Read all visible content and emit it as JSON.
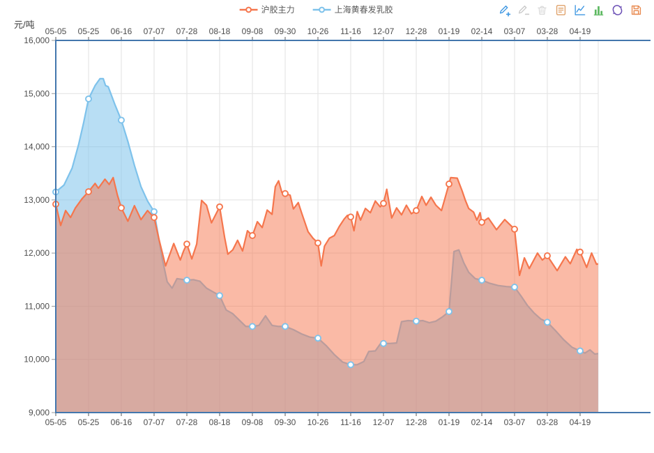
{
  "legend": {
    "items": [
      {
        "label": "沪胶主力",
        "color": "#F5764D"
      },
      {
        "label": "上海黄春发乳胶",
        "color": "#7EC2EB"
      }
    ]
  },
  "toolbar": {
    "icons": [
      {
        "name": "marker-add-icon",
        "color": "#3E97E2"
      },
      {
        "name": "marker-remove-icon",
        "color": "#C9C9C9"
      },
      {
        "name": "marker-clear-icon",
        "color": "#DBDBDB"
      },
      {
        "name": "data-view-icon",
        "color": "#DFA169"
      },
      {
        "name": "line-chart-icon",
        "color": "#3E97E2"
      },
      {
        "name": "bar-chart-icon",
        "color": "#5CB860"
      },
      {
        "name": "restore-icon",
        "color": "#6B4FB5"
      },
      {
        "name": "save-image-icon",
        "color": "#E8884D"
      }
    ]
  },
  "chart_data": {
    "type": "area",
    "unit_label": "元/吨",
    "ylim": [
      9000,
      16000
    ],
    "y_step": 1000,
    "y_tick_labels": [
      "9,000",
      "10,000",
      "11,000",
      "12,000",
      "13,000",
      "14,000",
      "15,000",
      "16,000"
    ],
    "x_tick_labels": [
      "05-05",
      "05-25",
      "06-16",
      "07-07",
      "07-28",
      "08-18",
      "09-08",
      "09-30",
      "10-26",
      "11-16",
      "12-07",
      "12-28",
      "01-19",
      "02-14",
      "03-07",
      "03-28",
      "04-19"
    ],
    "grid": true,
    "legend_position": "top-center",
    "axis_color": "#4377AD",
    "grid_color": "#E2E2E2",
    "text_color": "#4D4D4D",
    "series": [
      {
        "name": "上海黄春发乳胶",
        "color": "#7EC2EB",
        "fill_opacity": 0.55,
        "tick_values": [
          13150,
          14900,
          14500,
          12780,
          11490,
          11200,
          10620,
          10620,
          10400,
          9900,
          10300,
          10720,
          10900,
          11490,
          11360,
          10700,
          10160
        ],
        "points": [
          [
            0,
            13150
          ],
          [
            0.25,
            13280
          ],
          [
            0.5,
            13600
          ],
          [
            0.7,
            14050
          ],
          [
            0.85,
            14450
          ],
          [
            1,
            14900
          ],
          [
            1.2,
            15150
          ],
          [
            1.35,
            15280
          ],
          [
            1.45,
            15280
          ],
          [
            1.52,
            15150
          ],
          [
            1.6,
            15130
          ],
          [
            1.8,
            14800
          ],
          [
            2,
            14500
          ],
          [
            2.2,
            14100
          ],
          [
            2.4,
            13650
          ],
          [
            2.6,
            13250
          ],
          [
            2.8,
            12980
          ],
          [
            3,
            12780
          ],
          [
            3.1,
            12430
          ],
          [
            3.25,
            11890
          ],
          [
            3.4,
            11460
          ],
          [
            3.55,
            11340
          ],
          [
            3.7,
            11520
          ],
          [
            4,
            11490
          ],
          [
            4.2,
            11500
          ],
          [
            4.4,
            11470
          ],
          [
            4.6,
            11340
          ],
          [
            4.8,
            11270
          ],
          [
            5,
            11200
          ],
          [
            5.2,
            10930
          ],
          [
            5.4,
            10860
          ],
          [
            5.6,
            10740
          ],
          [
            5.8,
            10620
          ],
          [
            6,
            10620
          ],
          [
            6.2,
            10640
          ],
          [
            6.4,
            10820
          ],
          [
            6.6,
            10640
          ],
          [
            6.8,
            10620
          ],
          [
            7,
            10620
          ],
          [
            7.25,
            10560
          ],
          [
            7.5,
            10480
          ],
          [
            7.75,
            10420
          ],
          [
            8,
            10400
          ],
          [
            8.25,
            10260
          ],
          [
            8.5,
            10090
          ],
          [
            8.75,
            9950
          ],
          [
            9,
            9900
          ],
          [
            9.2,
            9900
          ],
          [
            9.4,
            9960
          ],
          [
            9.55,
            10150
          ],
          [
            9.75,
            10160
          ],
          [
            9.9,
            10290
          ],
          [
            10,
            10300
          ],
          [
            10.2,
            10300
          ],
          [
            10.4,
            10310
          ],
          [
            10.55,
            10710
          ],
          [
            10.75,
            10730
          ],
          [
            11,
            10720
          ],
          [
            11.2,
            10730
          ],
          [
            11.4,
            10690
          ],
          [
            11.6,
            10720
          ],
          [
            11.8,
            10800
          ],
          [
            12,
            10900
          ],
          [
            12.08,
            11500
          ],
          [
            12.15,
            12030
          ],
          [
            12.3,
            12060
          ],
          [
            12.45,
            11820
          ],
          [
            12.6,
            11640
          ],
          [
            12.8,
            11520
          ],
          [
            13,
            11490
          ],
          [
            13.25,
            11430
          ],
          [
            13.5,
            11390
          ],
          [
            13.75,
            11370
          ],
          [
            14,
            11360
          ],
          [
            14.2,
            11190
          ],
          [
            14.4,
            11010
          ],
          [
            14.6,
            10870
          ],
          [
            14.8,
            10760
          ],
          [
            15,
            10700
          ],
          [
            15.25,
            10540
          ],
          [
            15.5,
            10370
          ],
          [
            15.75,
            10230
          ],
          [
            16,
            10160
          ],
          [
            16.15,
            10120
          ],
          [
            16.3,
            10180
          ],
          [
            16.45,
            10100
          ],
          [
            16.55,
            10110
          ]
        ]
      },
      {
        "name": "沪胶主力",
        "color": "#F5764D",
        "fill_opacity": 0.5,
        "tick_values": [
          12920,
          13155,
          12850,
          12670,
          12170,
          12870,
          12330,
          13120,
          12190,
          12680,
          12935,
          12800,
          13300,
          12580,
          12450,
          11950,
          12020
        ],
        "points": [
          [
            0,
            12920
          ],
          [
            0.15,
            12520
          ],
          [
            0.3,
            12800
          ],
          [
            0.45,
            12670
          ],
          [
            0.6,
            12850
          ],
          [
            0.8,
            13020
          ],
          [
            1,
            13155
          ],
          [
            1.2,
            13310
          ],
          [
            1.3,
            13220
          ],
          [
            1.5,
            13390
          ],
          [
            1.63,
            13290
          ],
          [
            1.75,
            13420
          ],
          [
            1.88,
            13090
          ],
          [
            2,
            12850
          ],
          [
            2.2,
            12600
          ],
          [
            2.4,
            12890
          ],
          [
            2.6,
            12630
          ],
          [
            2.8,
            12800
          ],
          [
            3,
            12670
          ],
          [
            3.15,
            12260
          ],
          [
            3.35,
            11760
          ],
          [
            3.6,
            12180
          ],
          [
            3.8,
            11870
          ],
          [
            3.9,
            12040
          ],
          [
            4,
            12170
          ],
          [
            4.15,
            11890
          ],
          [
            4.3,
            12170
          ],
          [
            4.45,
            12990
          ],
          [
            4.6,
            12900
          ],
          [
            4.75,
            12570
          ],
          [
            5,
            12870
          ],
          [
            5.15,
            12300
          ],
          [
            5.25,
            11980
          ],
          [
            5.4,
            12060
          ],
          [
            5.55,
            12240
          ],
          [
            5.7,
            12040
          ],
          [
            5.85,
            12420
          ],
          [
            6,
            12330
          ],
          [
            6.15,
            12590
          ],
          [
            6.3,
            12480
          ],
          [
            6.45,
            12810
          ],
          [
            6.6,
            12730
          ],
          [
            6.7,
            13250
          ],
          [
            6.8,
            13360
          ],
          [
            6.9,
            13140
          ],
          [
            7,
            13120
          ],
          [
            7.15,
            13090
          ],
          [
            7.25,
            12830
          ],
          [
            7.4,
            12950
          ],
          [
            7.5,
            12760
          ],
          [
            7.7,
            12400
          ],
          [
            7.85,
            12280
          ],
          [
            8,
            12190
          ],
          [
            8.1,
            11760
          ],
          [
            8.2,
            12130
          ],
          [
            8.35,
            12280
          ],
          [
            8.5,
            12330
          ],
          [
            8.65,
            12500
          ],
          [
            8.8,
            12640
          ],
          [
            8.9,
            12710
          ],
          [
            9,
            12680
          ],
          [
            9.1,
            12420
          ],
          [
            9.2,
            12780
          ],
          [
            9.3,
            12620
          ],
          [
            9.45,
            12840
          ],
          [
            9.6,
            12760
          ],
          [
            9.75,
            12980
          ],
          [
            9.9,
            12870
          ],
          [
            10,
            12935
          ],
          [
            10.1,
            13200
          ],
          [
            10.25,
            12660
          ],
          [
            10.4,
            12850
          ],
          [
            10.55,
            12720
          ],
          [
            10.7,
            12900
          ],
          [
            10.85,
            12740
          ],
          [
            11,
            12800
          ],
          [
            11.17,
            13065
          ],
          [
            11.3,
            12900
          ],
          [
            11.45,
            13050
          ],
          [
            11.6,
            12900
          ],
          [
            11.77,
            12800
          ],
          [
            12,
            13300
          ],
          [
            12.05,
            13420
          ],
          [
            12.25,
            13410
          ],
          [
            12.4,
            13170
          ],
          [
            12.5,
            12990
          ],
          [
            12.6,
            12840
          ],
          [
            12.75,
            12770
          ],
          [
            12.85,
            12620
          ],
          [
            12.95,
            12760
          ],
          [
            13,
            12580
          ],
          [
            13.2,
            12660
          ],
          [
            13.45,
            12440
          ],
          [
            13.7,
            12630
          ],
          [
            14,
            12450
          ],
          [
            14.15,
            11580
          ],
          [
            14.3,
            11910
          ],
          [
            14.45,
            11710
          ],
          [
            14.7,
            12000
          ],
          [
            14.85,
            11870
          ],
          [
            15,
            11950
          ],
          [
            15.3,
            11670
          ],
          [
            15.55,
            11930
          ],
          [
            15.7,
            11800
          ],
          [
            15.9,
            12070
          ],
          [
            16,
            12020
          ],
          [
            16.2,
            11730
          ],
          [
            16.35,
            12000
          ],
          [
            16.5,
            11790
          ],
          [
            16.55,
            11800
          ]
        ]
      }
    ]
  }
}
